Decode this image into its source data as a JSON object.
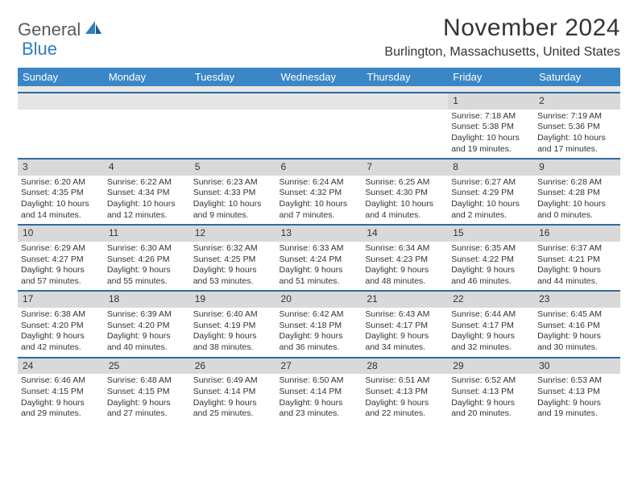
{
  "logo": {
    "word1": "General",
    "word2": "Blue"
  },
  "title": "November 2024",
  "location": "Burlington, Massachusetts, United States",
  "dayHeaders": [
    "Sunday",
    "Monday",
    "Tuesday",
    "Wednesday",
    "Thursday",
    "Friday",
    "Saturday"
  ],
  "colors": {
    "headerBg": "#3b86c6",
    "bandBg": "#d9d9d9",
    "rowBorder": "#2f6aa3",
    "text": "#333333"
  },
  "weeks": [
    [
      null,
      null,
      null,
      null,
      null,
      {
        "n": "1",
        "sunrise": "Sunrise: 7:18 AM",
        "sunset": "Sunset: 5:38 PM",
        "day1": "Daylight: 10 hours",
        "day2": "and 19 minutes."
      },
      {
        "n": "2",
        "sunrise": "Sunrise: 7:19 AM",
        "sunset": "Sunset: 5:36 PM",
        "day1": "Daylight: 10 hours",
        "day2": "and 17 minutes."
      }
    ],
    [
      {
        "n": "3",
        "sunrise": "Sunrise: 6:20 AM",
        "sunset": "Sunset: 4:35 PM",
        "day1": "Daylight: 10 hours",
        "day2": "and 14 minutes."
      },
      {
        "n": "4",
        "sunrise": "Sunrise: 6:22 AM",
        "sunset": "Sunset: 4:34 PM",
        "day1": "Daylight: 10 hours",
        "day2": "and 12 minutes."
      },
      {
        "n": "5",
        "sunrise": "Sunrise: 6:23 AM",
        "sunset": "Sunset: 4:33 PM",
        "day1": "Daylight: 10 hours",
        "day2": "and 9 minutes."
      },
      {
        "n": "6",
        "sunrise": "Sunrise: 6:24 AM",
        "sunset": "Sunset: 4:32 PM",
        "day1": "Daylight: 10 hours",
        "day2": "and 7 minutes."
      },
      {
        "n": "7",
        "sunrise": "Sunrise: 6:25 AM",
        "sunset": "Sunset: 4:30 PM",
        "day1": "Daylight: 10 hours",
        "day2": "and 4 minutes."
      },
      {
        "n": "8",
        "sunrise": "Sunrise: 6:27 AM",
        "sunset": "Sunset: 4:29 PM",
        "day1": "Daylight: 10 hours",
        "day2": "and 2 minutes."
      },
      {
        "n": "9",
        "sunrise": "Sunrise: 6:28 AM",
        "sunset": "Sunset: 4:28 PM",
        "day1": "Daylight: 10 hours",
        "day2": "and 0 minutes."
      }
    ],
    [
      {
        "n": "10",
        "sunrise": "Sunrise: 6:29 AM",
        "sunset": "Sunset: 4:27 PM",
        "day1": "Daylight: 9 hours",
        "day2": "and 57 minutes."
      },
      {
        "n": "11",
        "sunrise": "Sunrise: 6:30 AM",
        "sunset": "Sunset: 4:26 PM",
        "day1": "Daylight: 9 hours",
        "day2": "and 55 minutes."
      },
      {
        "n": "12",
        "sunrise": "Sunrise: 6:32 AM",
        "sunset": "Sunset: 4:25 PM",
        "day1": "Daylight: 9 hours",
        "day2": "and 53 minutes."
      },
      {
        "n": "13",
        "sunrise": "Sunrise: 6:33 AM",
        "sunset": "Sunset: 4:24 PM",
        "day1": "Daylight: 9 hours",
        "day2": "and 51 minutes."
      },
      {
        "n": "14",
        "sunrise": "Sunrise: 6:34 AM",
        "sunset": "Sunset: 4:23 PM",
        "day1": "Daylight: 9 hours",
        "day2": "and 48 minutes."
      },
      {
        "n": "15",
        "sunrise": "Sunrise: 6:35 AM",
        "sunset": "Sunset: 4:22 PM",
        "day1": "Daylight: 9 hours",
        "day2": "and 46 minutes."
      },
      {
        "n": "16",
        "sunrise": "Sunrise: 6:37 AM",
        "sunset": "Sunset: 4:21 PM",
        "day1": "Daylight: 9 hours",
        "day2": "and 44 minutes."
      }
    ],
    [
      {
        "n": "17",
        "sunrise": "Sunrise: 6:38 AM",
        "sunset": "Sunset: 4:20 PM",
        "day1": "Daylight: 9 hours",
        "day2": "and 42 minutes."
      },
      {
        "n": "18",
        "sunrise": "Sunrise: 6:39 AM",
        "sunset": "Sunset: 4:20 PM",
        "day1": "Daylight: 9 hours",
        "day2": "and 40 minutes."
      },
      {
        "n": "19",
        "sunrise": "Sunrise: 6:40 AM",
        "sunset": "Sunset: 4:19 PM",
        "day1": "Daylight: 9 hours",
        "day2": "and 38 minutes."
      },
      {
        "n": "20",
        "sunrise": "Sunrise: 6:42 AM",
        "sunset": "Sunset: 4:18 PM",
        "day1": "Daylight: 9 hours",
        "day2": "and 36 minutes."
      },
      {
        "n": "21",
        "sunrise": "Sunrise: 6:43 AM",
        "sunset": "Sunset: 4:17 PM",
        "day1": "Daylight: 9 hours",
        "day2": "and 34 minutes."
      },
      {
        "n": "22",
        "sunrise": "Sunrise: 6:44 AM",
        "sunset": "Sunset: 4:17 PM",
        "day1": "Daylight: 9 hours",
        "day2": "and 32 minutes."
      },
      {
        "n": "23",
        "sunrise": "Sunrise: 6:45 AM",
        "sunset": "Sunset: 4:16 PM",
        "day1": "Daylight: 9 hours",
        "day2": "and 30 minutes."
      }
    ],
    [
      {
        "n": "24",
        "sunrise": "Sunrise: 6:46 AM",
        "sunset": "Sunset: 4:15 PM",
        "day1": "Daylight: 9 hours",
        "day2": "and 29 minutes."
      },
      {
        "n": "25",
        "sunrise": "Sunrise: 6:48 AM",
        "sunset": "Sunset: 4:15 PM",
        "day1": "Daylight: 9 hours",
        "day2": "and 27 minutes."
      },
      {
        "n": "26",
        "sunrise": "Sunrise: 6:49 AM",
        "sunset": "Sunset: 4:14 PM",
        "day1": "Daylight: 9 hours",
        "day2": "and 25 minutes."
      },
      {
        "n": "27",
        "sunrise": "Sunrise: 6:50 AM",
        "sunset": "Sunset: 4:14 PM",
        "day1": "Daylight: 9 hours",
        "day2": "and 23 minutes."
      },
      {
        "n": "28",
        "sunrise": "Sunrise: 6:51 AM",
        "sunset": "Sunset: 4:13 PM",
        "day1": "Daylight: 9 hours",
        "day2": "and 22 minutes."
      },
      {
        "n": "29",
        "sunrise": "Sunrise: 6:52 AM",
        "sunset": "Sunset: 4:13 PM",
        "day1": "Daylight: 9 hours",
        "day2": "and 20 minutes."
      },
      {
        "n": "30",
        "sunrise": "Sunrise: 6:53 AM",
        "sunset": "Sunset: 4:13 PM",
        "day1": "Daylight: 9 hours",
        "day2": "and 19 minutes."
      }
    ]
  ]
}
